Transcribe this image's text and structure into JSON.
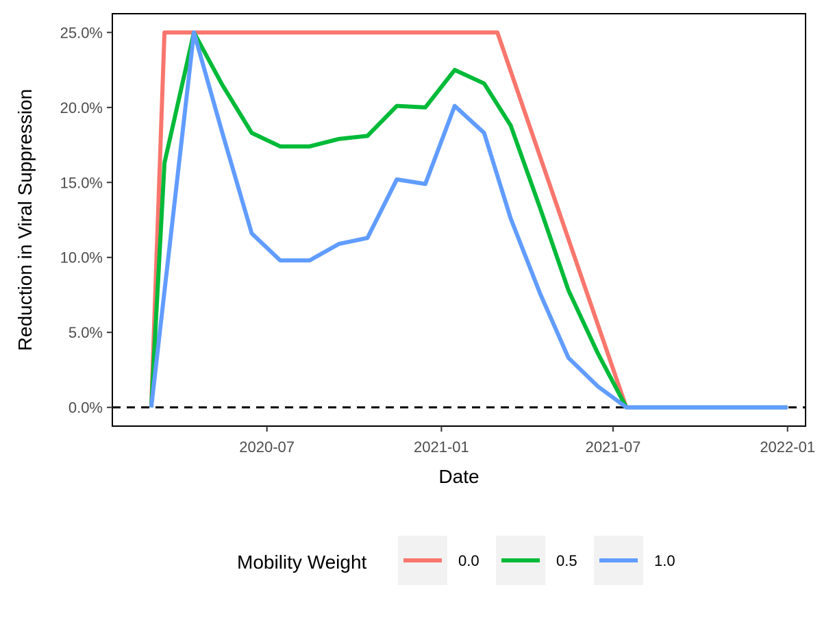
{
  "chart_data": {
    "type": "line",
    "xlabel": "Date",
    "ylabel": "Reduction in Viral Suppression",
    "x_tick_labels": [
      "2020-07",
      "2021-01",
      "2021-07",
      "2022-01"
    ],
    "y_tick_labels": [
      "0.0%",
      "5.0%",
      "10.0%",
      "15.0%",
      "20.0%",
      "25.0%"
    ],
    "y_ticks": [
      0,
      5,
      10,
      15,
      20,
      25
    ],
    "xlim": [
      "2020-01-20",
      "2022-01-20"
    ],
    "ylim": [
      -1.25,
      26.25
    ],
    "reference_line": {
      "y": 0,
      "style": "dashed"
    },
    "legend": {
      "title": "Mobility Weight",
      "placement": "bottom"
    },
    "series": [
      {
        "name": "0.0",
        "color": "#F8766D",
        "points": [
          [
            "2020-03-01",
            0.0
          ],
          [
            "2020-03-15",
            25.0
          ],
          [
            "2020-04-15",
            25.0
          ],
          [
            "2020-06-15",
            25.0
          ],
          [
            "2021-01-01",
            25.0
          ],
          [
            "2021-03-01",
            25.0
          ],
          [
            "2021-07-15",
            0.0
          ],
          [
            "2022-01-01",
            0.0
          ]
        ]
      },
      {
        "name": "0.5",
        "color": "#00BA38",
        "points": [
          [
            "2020-03-01",
            0.0
          ],
          [
            "2020-03-15",
            16.3
          ],
          [
            "2020-04-15",
            25.0
          ],
          [
            "2020-05-15",
            21.5
          ],
          [
            "2020-06-15",
            18.3
          ],
          [
            "2020-07-15",
            17.4
          ],
          [
            "2020-08-15",
            17.4
          ],
          [
            "2020-09-15",
            17.9
          ],
          [
            "2020-10-15",
            18.1
          ],
          [
            "2020-11-15",
            20.1
          ],
          [
            "2020-12-15",
            20.0
          ],
          [
            "2021-01-15",
            22.5
          ],
          [
            "2021-02-15",
            21.6
          ],
          [
            "2021-03-15",
            18.8
          ],
          [
            "2021-04-15",
            13.3
          ],
          [
            "2021-05-15",
            7.8
          ],
          [
            "2021-06-15",
            3.6
          ],
          [
            "2021-07-15",
            0.0
          ],
          [
            "2022-01-01",
            0.0
          ]
        ]
      },
      {
        "name": "1.0",
        "color": "#619CFF",
        "points": [
          [
            "2020-03-01",
            0.0
          ],
          [
            "2020-04-15",
            25.0
          ],
          [
            "2020-05-15",
            18.3
          ],
          [
            "2020-06-15",
            11.6
          ],
          [
            "2020-07-15",
            9.8
          ],
          [
            "2020-08-15",
            9.8
          ],
          [
            "2020-09-15",
            10.9
          ],
          [
            "2020-10-15",
            11.3
          ],
          [
            "2020-11-15",
            15.2
          ],
          [
            "2020-12-15",
            14.9
          ],
          [
            "2021-01-15",
            20.1
          ],
          [
            "2021-02-15",
            18.3
          ],
          [
            "2021-03-15",
            12.6
          ],
          [
            "2021-04-15",
            7.6
          ],
          [
            "2021-05-15",
            3.3
          ],
          [
            "2021-06-15",
            1.4
          ],
          [
            "2021-07-15",
            0.0
          ],
          [
            "2022-01-01",
            0.0
          ]
        ]
      }
    ]
  }
}
